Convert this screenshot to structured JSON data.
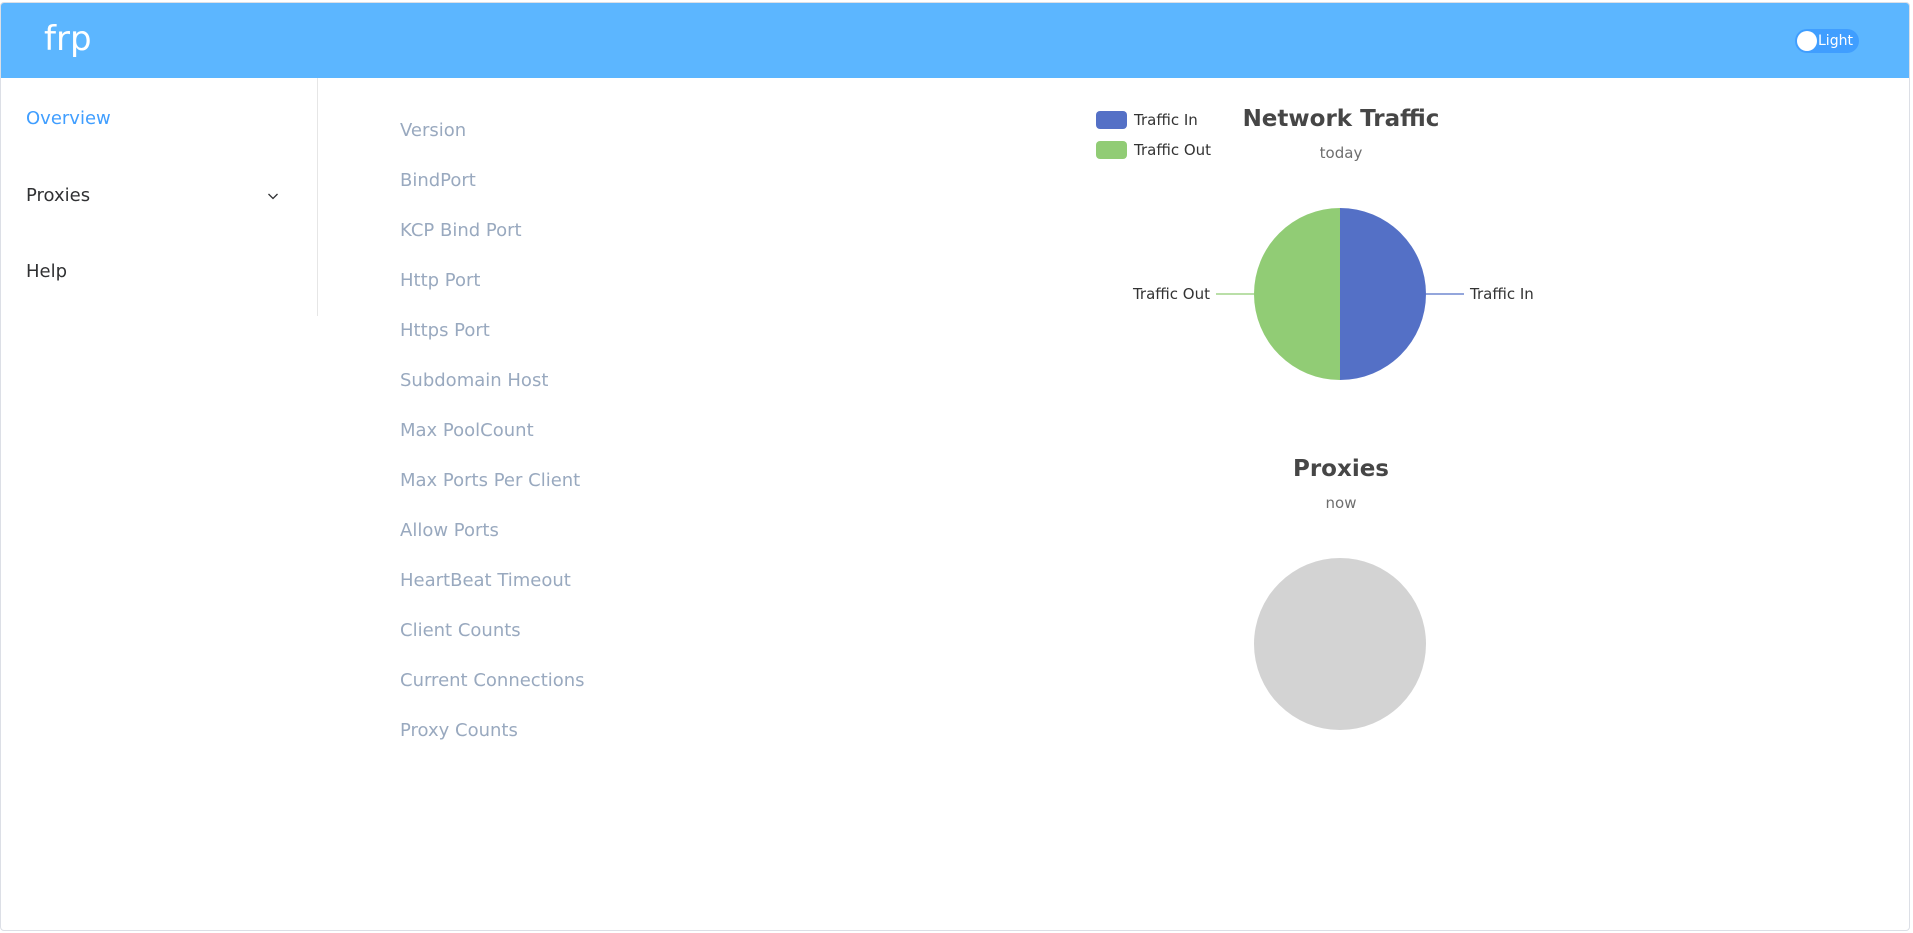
{
  "header": {
    "brand": "frp",
    "theme_toggle_label": "Light",
    "background_color": "#5cb6ff"
  },
  "sidebar": {
    "items": [
      {
        "label": "Overview",
        "active": true
      },
      {
        "label": "Proxies",
        "has_submenu": true,
        "icon": "chevron-down-icon"
      },
      {
        "label": "Help"
      }
    ]
  },
  "overview": {
    "fields": [
      {
        "label": "Version",
        "value": ""
      },
      {
        "label": "BindPort",
        "value": ""
      },
      {
        "label": "KCP Bind Port",
        "value": ""
      },
      {
        "label": "Http Port",
        "value": ""
      },
      {
        "label": "Https Port",
        "value": ""
      },
      {
        "label": "Subdomain Host",
        "value": ""
      },
      {
        "label": "Max PoolCount",
        "value": ""
      },
      {
        "label": "Max Ports Per Client",
        "value": ""
      },
      {
        "label": "Allow Ports",
        "value": ""
      },
      {
        "label": "HeartBeat Timeout",
        "value": ""
      },
      {
        "label": "Client Counts",
        "value": ""
      },
      {
        "label": "Current Connections",
        "value": ""
      },
      {
        "label": "Proxy Counts",
        "value": ""
      }
    ]
  },
  "chart_data": [
    {
      "type": "pie",
      "title": "Network Traffic",
      "subtitle": "today",
      "legend_position": "top-left",
      "categories": [
        "Traffic In",
        "Traffic Out"
      ],
      "values": [
        1,
        1
      ],
      "colors": [
        "#5470c6",
        "#91cc75"
      ],
      "legend": [
        "Traffic In",
        "Traffic Out"
      ]
    },
    {
      "type": "pie",
      "title": "Proxies",
      "subtitle": "now",
      "categories": [],
      "values": [],
      "empty_color": "#d3d3d3"
    }
  ]
}
